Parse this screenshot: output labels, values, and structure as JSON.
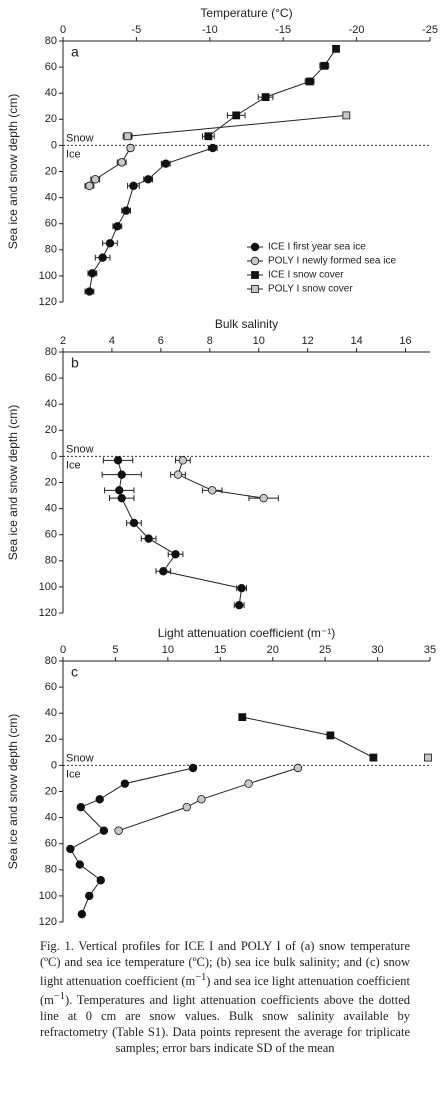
{
  "chart_data": [
    {
      "type": "line",
      "panel": "a",
      "xlabel": "Temperature (°C)",
      "ylabel": "Sea ice and snow depth (cm)",
      "annotations": [
        "Snow",
        "Ice"
      ],
      "legend": "lower right",
      "xlim": [
        0,
        -25
      ],
      "xticks": [
        0,
        -5,
        -10,
        -15,
        -20,
        -25
      ],
      "ylim": [
        -120,
        80
      ],
      "yticks": [
        80,
        60,
        40,
        20,
        0,
        {
          "value": -20,
          "label": "20"
        },
        {
          "value": -40,
          "label": "40"
        },
        {
          "value": -60,
          "label": "60"
        },
        {
          "value": -80,
          "label": "80"
        },
        {
          "value": -100,
          "label": "100"
        },
        {
          "value": -120,
          "label": "120"
        }
      ],
      "series": [
        {
          "name": "ICE I first year sea ice",
          "marker": "circle",
          "color": "#111111",
          "x": [
            -10.2,
            -7.0,
            -5.8,
            -4.8,
            -4.3,
            -3.7,
            -3.2,
            -2.7,
            -2.0,
            -1.8
          ],
          "y": [
            -2,
            -14,
            -26,
            -31,
            -50,
            -62,
            -75,
            -86,
            -98,
            -112
          ],
          "errors": [
            0.3,
            0.3,
            0.3,
            0.4,
            0.3,
            0.3,
            0.5,
            0.5,
            0.3,
            0.3
          ]
        },
        {
          "name": "POLY I newly formed sea ice",
          "marker": "circle",
          "color": "#c8c8c8",
          "x": [
            -4.6,
            -4.0,
            -2.2,
            -1.8
          ],
          "y": [
            -2,
            -13,
            -26,
            -31
          ],
          "errors": [
            0.2,
            0.3,
            0.3,
            0.3
          ]
        },
        {
          "name": "ICE I snow cover",
          "marker": "square",
          "color": "#111111",
          "x": [
            -18.6,
            -17.8,
            -16.8,
            -13.8,
            -11.8,
            -9.9
          ],
          "y": [
            74,
            61,
            49,
            37,
            23,
            7
          ],
          "errors": [
            0.2,
            0.3,
            0.3,
            0.5,
            0.6,
            0.4
          ]
        },
        {
          "name": "POLY I snow cover",
          "marker": "square",
          "color": "#c8c8c8",
          "x": [
            -19.3,
            -4.4
          ],
          "y": [
            23,
            7
          ],
          "errors": [
            0.2,
            0.3
          ]
        }
      ]
    },
    {
      "type": "line",
      "panel": "b",
      "xlabel": "Bulk salinity",
      "ylabel": "Sea ice and snow depth (cm)",
      "annotations": [
        "Snow",
        "Ice"
      ],
      "xlim": [
        2,
        17
      ],
      "xticks": [
        2,
        4,
        6,
        8,
        10,
        12,
        14,
        16
      ],
      "ylim": [
        -120,
        80
      ],
      "yticks": [
        80,
        60,
        40,
        20,
        0,
        {
          "value": -20,
          "label": "20"
        },
        {
          "value": -40,
          "label": "40"
        },
        {
          "value": -60,
          "label": "60"
        },
        {
          "value": -80,
          "label": "80"
        },
        {
          "value": -100,
          "label": "100"
        },
        {
          "value": -120,
          "label": "120"
        }
      ],
      "series": [
        {
          "marker": "circle",
          "color": "#111111",
          "x": [
            4.25,
            4.4,
            4.3,
            4.4,
            4.9,
            5.5,
            6.6,
            6.1,
            9.3,
            9.2
          ],
          "y": [
            -3,
            -14,
            -26,
            -32,
            -51,
            -63,
            -75,
            -88,
            -101,
            -114
          ],
          "errors": [
            0.6,
            0.8,
            0.6,
            0.5,
            0.3,
            0.3,
            0.3,
            0.3,
            0.2,
            0.2
          ]
        },
        {
          "marker": "circle",
          "color": "#c8c8c8",
          "x": [
            6.9,
            6.7,
            8.1,
            10.2
          ],
          "y": [
            -3,
            -14,
            -26,
            -32
          ],
          "errors": [
            0.3,
            0.3,
            0.4,
            0.6
          ]
        }
      ]
    },
    {
      "type": "line",
      "panel": "c",
      "xlabel": "Light attenuation coefficient (m⁻¹)",
      "ylabel": "Sea ice and snow depth (cm)",
      "annotations": [
        "Snow",
        "Ice"
      ],
      "xlim": [
        0,
        35
      ],
      "xticks": [
        0,
        5,
        10,
        15,
        20,
        25,
        30,
        35
      ],
      "ylim": [
        -120,
        80
      ],
      "yticks": [
        80,
        60,
        40,
        20,
        0,
        {
          "value": -20,
          "label": "20"
        },
        {
          "value": -40,
          "label": "40"
        },
        {
          "value": -60,
          "label": "60"
        },
        {
          "value": -80,
          "label": "80"
        },
        {
          "value": -100,
          "label": "100"
        },
        {
          "value": -120,
          "label": "120"
        }
      ],
      "series": [
        {
          "marker": "circle",
          "color": "#111111",
          "x": [
            12.4,
            5.9,
            3.5,
            1.7,
            3.9,
            0.7,
            1.6,
            3.6,
            2.5,
            1.8
          ],
          "y": [
            -2,
            -14,
            -26,
            -32,
            -50,
            -64,
            -76,
            -88,
            -100,
            -114
          ]
        },
        {
          "marker": "circle",
          "color": "#c8c8c8",
          "x": [
            22.4,
            17.7,
            13.2,
            11.8,
            5.3
          ],
          "y": [
            -2,
            -14,
            -26,
            -32,
            -50
          ]
        },
        {
          "marker": "square",
          "color": "#111111",
          "x": [
            17.1,
            25.5,
            29.6
          ],
          "y": [
            37,
            23,
            6
          ]
        },
        {
          "marker": "square",
          "color": "#c8c8c8",
          "x": [
            34.8
          ],
          "y": [
            6
          ]
        }
      ]
    }
  ],
  "caption": [
    "Fig. 1. Vertical profiles for ICE I and POLY I of (a) snow temperature (ºC) and sea ice temperature (ºC); (b) sea ice bulk salinity; and (c) snow light attenuation coefficient (m",
    "−1",
    ") and sea ice light attenuation coefficient (m",
    "−1",
    "). Temperatures and light attenuation coefficients above the dotted line at 0 cm are snow values. Bulk snow salinity available by refractometry (Table S1). Data points represent the average for triplicate samples; error bars indicate SD of the mean"
  ]
}
